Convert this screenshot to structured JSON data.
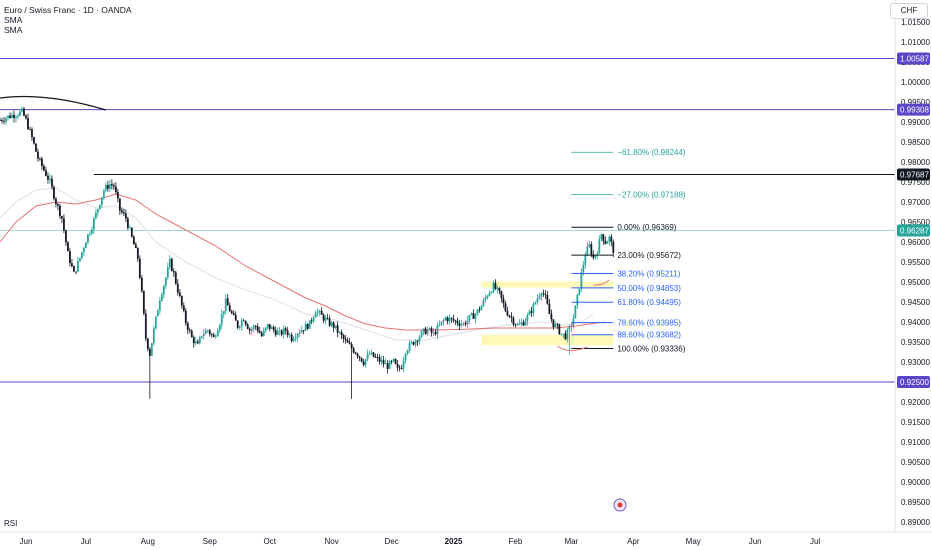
{
  "header": {
    "title": "Euro / Swiss Franc · 1D · OANDA",
    "indicators": [
      "SMA",
      "SMA"
    ],
    "currency": "CHF"
  },
  "pane_label": "RSI",
  "colors": {
    "up": "#26a69a",
    "down": "#131722",
    "level_line": "#5b45c8",
    "level_label": "#5b45c8",
    "black_level": "#131722",
    "sma_fast": "#e57373",
    "sma_slow": "#e0e3eb",
    "current_price": "#26a69a",
    "fib_line": "#2962ff",
    "ext_line": "#26a69a",
    "zone": "#fff59d"
  },
  "chart_data": {
    "type": "candlestick",
    "symbol": "EURCHF",
    "timeframe": "1D",
    "y_ticks": [
      "1.01500",
      "1.01000",
      "1.00500",
      "1.00000",
      "0.99500",
      "0.99000",
      "0.98500",
      "0.98000",
      "0.97500",
      "0.97000",
      "0.96500",
      "0.96000",
      "0.95500",
      "0.95000",
      "0.94500",
      "0.94000",
      "0.93500",
      "0.93000",
      "0.92500",
      "0.92000",
      "0.91500",
      "0.91000",
      "0.90500",
      "0.90000",
      "0.89500",
      "0.89000"
    ],
    "ylim": [
      0.8875,
      1.0205
    ],
    "x_ticks": [
      {
        "label": "Jun",
        "t": 0,
        "bold": false
      },
      {
        "label": "Jul",
        "t": 30,
        "bold": false
      },
      {
        "label": "Aug",
        "t": 61,
        "bold": false
      },
      {
        "label": "Sep",
        "t": 92,
        "bold": false
      },
      {
        "label": "Oct",
        "t": 122,
        "bold": false
      },
      {
        "label": "Nov",
        "t": 153,
        "bold": false
      },
      {
        "label": "Dec",
        "t": 183,
        "bold": false
      },
      {
        "label": "2025",
        "t": 214,
        "bold": true
      },
      {
        "label": "Feb",
        "t": 245,
        "bold": false
      },
      {
        "label": "Mar",
        "t": 273,
        "bold": false
      },
      {
        "label": "Apr",
        "t": 304,
        "bold": false
      },
      {
        "label": "May",
        "t": 334,
        "bold": false
      },
      {
        "label": "Jun",
        "t": 365,
        "bold": false
      },
      {
        "label": "Jul",
        "t": 395,
        "bold": false
      }
    ],
    "xlim": [
      -13,
      435
    ],
    "price_levels": [
      {
        "value": 1.00587,
        "label": "1.00587",
        "style": "purple"
      },
      {
        "value": 0.99308,
        "label": "0.99308",
        "style": "purple"
      },
      {
        "value": 0.97687,
        "label": "0.97687",
        "style": "black"
      },
      {
        "value": 0.96287,
        "label": "0.96287",
        "style": "current"
      },
      {
        "value": 0.925,
        "label": "0.92500",
        "style": "purple"
      }
    ],
    "fib_levels": [
      {
        "ratio_label": "−61.80%",
        "value": 0.98244,
        "text": "−61.80% (0.98244)",
        "kind": "ext"
      },
      {
        "ratio_label": "−27.00%",
        "value": 0.97188,
        "text": "−27.00% (0.97188)",
        "kind": "ext"
      },
      {
        "ratio_label": "0.00%",
        "value": 0.96369,
        "text": "0.00% (0.96369)",
        "kind": "black"
      },
      {
        "ratio_label": "23.00%",
        "value": 0.95672,
        "text": "23.00% (0.95672)",
        "kind": "black"
      },
      {
        "ratio_label": "38.20%",
        "value": 0.95211,
        "text": "38.20% (0.95211)",
        "kind": "blue"
      },
      {
        "ratio_label": "50.00%",
        "value": 0.94853,
        "text": "50.00% (0.94853)",
        "kind": "blue"
      },
      {
        "ratio_label": "61.80%",
        "value": 0.94495,
        "text": "61.80% (0.94495)",
        "kind": "blue"
      },
      {
        "ratio_label": "78.60%",
        "value": 0.93985,
        "text": "78.60% (0.93985)",
        "kind": "blue"
      },
      {
        "ratio_label": "88.60%",
        "value": 0.93682,
        "text": "88.60% (0.93682)",
        "kind": "blue"
      },
      {
        "ratio_label": "100.00%",
        "value": 0.93336,
        "text": "100.00% (0.93336)",
        "kind": "black"
      }
    ],
    "zones": [
      {
        "from": 0.9501,
        "to": 0.9486
      },
      {
        "from": 0.9368,
        "to": 0.9342
      }
    ],
    "ohlc_path": [
      [
        -13,
        0.9905
      ],
      [
        -8,
        0.9915
      ],
      [
        -5,
        0.992
      ],
      [
        -2,
        0.9925
      ],
      [
        0,
        0.9905
      ],
      [
        3,
        0.986
      ],
      [
        6,
        0.981
      ],
      [
        9,
        0.978
      ],
      [
        12,
        0.975
      ],
      [
        15,
        0.97
      ],
      [
        18,
        0.966
      ],
      [
        21,
        0.957
      ],
      [
        24,
        0.952
      ],
      [
        27,
        0.956
      ],
      [
        30,
        0.9605
      ],
      [
        33,
        0.964
      ],
      [
        36,
        0.9685
      ],
      [
        39,
        0.973
      ],
      [
        42,
        0.9745
      ],
      [
        44,
        0.974
      ],
      [
        47,
        0.968
      ],
      [
        50,
        0.966
      ],
      [
        53,
        0.961
      ],
      [
        56,
        0.956
      ],
      [
        58,
        0.947
      ],
      [
        60,
        0.936
      ],
      [
        62,
        0.932
      ],
      [
        64,
        0.938
      ],
      [
        67,
        0.946
      ],
      [
        70,
        0.951
      ],
      [
        72,
        0.955
      ],
      [
        74,
        0.952
      ],
      [
        77,
        0.946
      ],
      [
        80,
        0.94
      ],
      [
        83,
        0.936
      ],
      [
        86,
        0.934
      ],
      [
        88,
        0.937
      ],
      [
        91,
        0.938
      ],
      [
        94,
        0.936
      ],
      [
        97,
        0.94
      ],
      [
        100,
        0.945
      ],
      [
        103,
        0.942
      ],
      [
        106,
        0.939
      ],
      [
        109,
        0.941
      ],
      [
        112,
        0.938
      ],
      [
        115,
        0.939
      ],
      [
        118,
        0.9365
      ],
      [
        121,
        0.939
      ],
      [
        124,
        0.938
      ],
      [
        127,
        0.937
      ],
      [
        130,
        0.938
      ],
      [
        133,
        0.936
      ],
      [
        136,
        0.9375
      ],
      [
        139,
        0.9385
      ],
      [
        142,
        0.9395
      ],
      [
        145,
        0.943
      ],
      [
        148,
        0.9415
      ],
      [
        151,
        0.94
      ],
      [
        154,
        0.939
      ],
      [
        157,
        0.937
      ],
      [
        160,
        0.935
      ],
      [
        163,
        0.9335
      ],
      [
        166,
        0.932
      ],
      [
        169,
        0.93
      ],
      [
        172,
        0.932
      ],
      [
        175,
        0.931
      ],
      [
        178,
        0.93
      ],
      [
        181,
        0.929
      ],
      [
        184,
        0.93
      ],
      [
        186,
        0.928
      ],
      [
        188,
        0.929
      ],
      [
        190,
        0.933
      ],
      [
        193,
        0.9345
      ],
      [
        196,
        0.936
      ],
      [
        199,
        0.9375
      ],
      [
        201,
        0.938
      ],
      [
        204,
        0.937
      ],
      [
        207,
        0.939
      ],
      [
        210,
        0.941
      ],
      [
        213,
        0.9405
      ],
      [
        216,
        0.94
      ],
      [
        219,
        0.9395
      ],
      [
        222,
        0.941
      ],
      [
        225,
        0.942
      ],
      [
        228,
        0.944
      ],
      [
        231,
        0.947
      ],
      [
        234,
        0.949
      ],
      [
        237,
        0.947
      ],
      [
        240,
        0.943
      ],
      [
        243,
        0.941
      ],
      [
        246,
        0.939
      ],
      [
        249,
        0.94
      ],
      [
        252,
        0.942
      ],
      [
        255,
        0.945
      ],
      [
        258,
        0.948
      ],
      [
        260,
        0.946
      ],
      [
        262,
        0.942
      ],
      [
        264,
        0.9395
      ],
      [
        266,
        0.9385
      ],
      [
        268,
        0.937
      ],
      [
        270,
        0.9365
      ],
      [
        272,
        0.938
      ],
      [
        274,
        0.941
      ],
      [
        276,
        0.946
      ],
      [
        278,
        0.952
      ],
      [
        280,
        0.957
      ],
      [
        282,
        0.959
      ],
      [
        284,
        0.956
      ],
      [
        286,
        0.958
      ],
      [
        288,
        0.962
      ],
      [
        290,
        0.96
      ],
      [
        292,
        0.961
      ],
      [
        294,
        0.958
      ]
    ],
    "sma_fast": [
      [
        -13,
        0.96
      ],
      [
        -5,
        0.965
      ],
      [
        5,
        0.969
      ],
      [
        15,
        0.97
      ],
      [
        25,
        0.9695
      ],
      [
        35,
        0.9705
      ],
      [
        45,
        0.972
      ],
      [
        55,
        0.9705
      ],
      [
        65,
        0.967
      ],
      [
        80,
        0.963
      ],
      [
        95,
        0.959
      ],
      [
        110,
        0.954
      ],
      [
        125,
        0.95
      ],
      [
        140,
        0.946
      ],
      [
        150,
        0.944
      ],
      [
        160,
        0.9415
      ],
      [
        170,
        0.9395
      ],
      [
        180,
        0.9385
      ],
      [
        190,
        0.938
      ],
      [
        205,
        0.938
      ],
      [
        220,
        0.9382
      ],
      [
        235,
        0.9385
      ],
      [
        250,
        0.9385
      ],
      [
        265,
        0.9385
      ],
      [
        275,
        0.939
      ],
      [
        282,
        0.9395
      ],
      [
        290,
        0.94
      ]
    ],
    "sma_slow": [
      [
        -13,
        0.966
      ],
      [
        -5,
        0.97
      ],
      [
        5,
        0.973
      ],
      [
        15,
        0.9735
      ],
      [
        25,
        0.9705
      ],
      [
        35,
        0.9685
      ],
      [
        45,
        0.969
      ],
      [
        55,
        0.966
      ],
      [
        65,
        0.96
      ],
      [
        80,
        0.955
      ],
      [
        95,
        0.951
      ],
      [
        110,
        0.948
      ],
      [
        125,
        0.9455
      ],
      [
        140,
        0.942
      ],
      [
        155,
        0.9405
      ],
      [
        170,
        0.938
      ],
      [
        185,
        0.9355
      ],
      [
        200,
        0.9355
      ],
      [
        215,
        0.937
      ],
      [
        230,
        0.9385
      ],
      [
        245,
        0.9395
      ],
      [
        258,
        0.94
      ],
      [
        266,
        0.9395
      ],
      [
        272,
        0.9393
      ],
      [
        278,
        0.94
      ],
      [
        284,
        0.942
      ]
    ],
    "fib_anchor": {
      "t_from": 273,
      "t_to": 294
    },
    "ext_anchor": {
      "t_from": 273,
      "t_to": 294
    }
  }
}
